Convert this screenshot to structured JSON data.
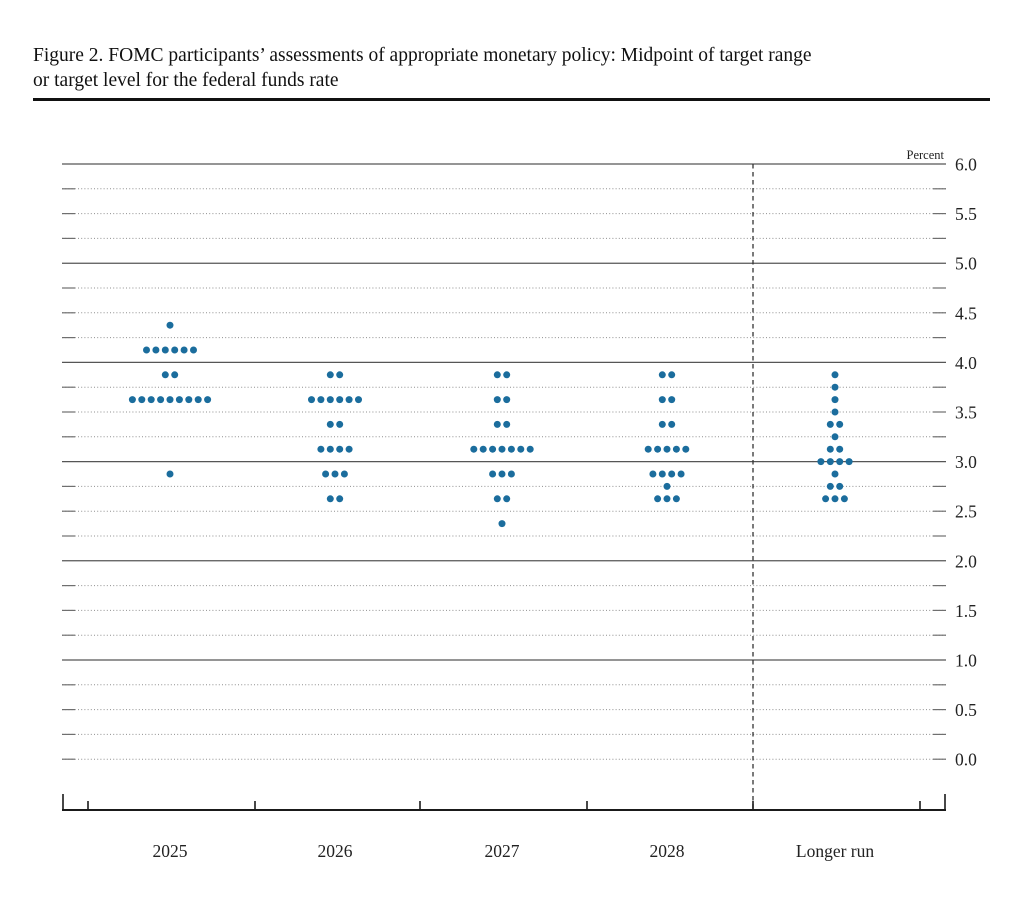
{
  "figure": {
    "title_line1": "Figure 2. FOMC participants’ assessments of appropriate monetary policy: Midpoint of target range",
    "title_line2": "or target level for the federal funds rate"
  },
  "chart_data": {
    "type": "scatter",
    "subtype": "dot-plot",
    "title": "FOMC participants’ assessments of appropriate monetary policy: Midpoint of target range or target level for the federal funds rate",
    "ylabel": "Percent",
    "percent_label": "Percent",
    "ylim": [
      0.0,
      6.0
    ],
    "y_minor_step": 0.25,
    "y_label_step": 0.5,
    "grid": "dotted-minor-solid-integer",
    "y_solid_gridlines": [
      6.0,
      5.0,
      4.0,
      3.0,
      2.0,
      1.0
    ],
    "y_axis_labels": [
      {
        "v": 6.0,
        "label": "6.0"
      },
      {
        "v": 5.5,
        "label": "5.5"
      },
      {
        "v": 5.0,
        "label": "5.0"
      },
      {
        "v": 4.5,
        "label": "4.5"
      },
      {
        "v": 4.0,
        "label": "4.0"
      },
      {
        "v": 3.5,
        "label": "3.5"
      },
      {
        "v": 3.0,
        "label": "3.0"
      },
      {
        "v": 2.5,
        "label": "2.5"
      },
      {
        "v": 2.0,
        "label": "2.0"
      },
      {
        "v": 1.5,
        "label": "1.5"
      },
      {
        "v": 1.0,
        "label": "1.0"
      },
      {
        "v": 0.5,
        "label": "0.5"
      },
      {
        "v": 0.0,
        "label": "0.0"
      }
    ],
    "categories": [
      "2025",
      "2026",
      "2027",
      "2028",
      "Longer run"
    ],
    "separator_before_category": "Longer run",
    "dot_color": "#1b6d9d",
    "participants_per_column": 19,
    "series": [
      {
        "name": "2025",
        "dots": [
          {
            "value": 4.375,
            "count": 1
          },
          {
            "value": 4.125,
            "count": 6
          },
          {
            "value": 3.875,
            "count": 2
          },
          {
            "value": 3.625,
            "count": 9
          },
          {
            "value": 2.875,
            "count": 1
          }
        ]
      },
      {
        "name": "2026",
        "dots": [
          {
            "value": 3.875,
            "count": 2
          },
          {
            "value": 3.625,
            "count": 6
          },
          {
            "value": 3.375,
            "count": 2
          },
          {
            "value": 3.125,
            "count": 4
          },
          {
            "value": 2.875,
            "count": 3
          },
          {
            "value": 2.625,
            "count": 2
          }
        ]
      },
      {
        "name": "2027",
        "dots": [
          {
            "value": 3.875,
            "count": 2
          },
          {
            "value": 3.625,
            "count": 2
          },
          {
            "value": 3.375,
            "count": 2
          },
          {
            "value": 3.125,
            "count": 7
          },
          {
            "value": 2.875,
            "count": 3
          },
          {
            "value": 2.625,
            "count": 2
          },
          {
            "value": 2.375,
            "count": 1
          }
        ]
      },
      {
        "name": "2028",
        "dots": [
          {
            "value": 3.875,
            "count": 2
          },
          {
            "value": 3.625,
            "count": 2
          },
          {
            "value": 3.375,
            "count": 2
          },
          {
            "value": 3.125,
            "count": 5
          },
          {
            "value": 2.875,
            "count": 4
          },
          {
            "value": 2.75,
            "count": 1
          },
          {
            "value": 2.625,
            "count": 3
          }
        ]
      },
      {
        "name": "Longer run",
        "dots": [
          {
            "value": 3.875,
            "count": 1
          },
          {
            "value": 3.75,
            "count": 1
          },
          {
            "value": 3.625,
            "count": 1
          },
          {
            "value": 3.5,
            "count": 1
          },
          {
            "value": 3.375,
            "count": 2
          },
          {
            "value": 3.25,
            "count": 1
          },
          {
            "value": 3.125,
            "count": 2
          },
          {
            "value": 3.0,
            "count": 4
          },
          {
            "value": 2.875,
            "count": 1
          },
          {
            "value": 2.75,
            "count": 2
          },
          {
            "value": 2.625,
            "count": 3
          }
        ]
      }
    ]
  }
}
